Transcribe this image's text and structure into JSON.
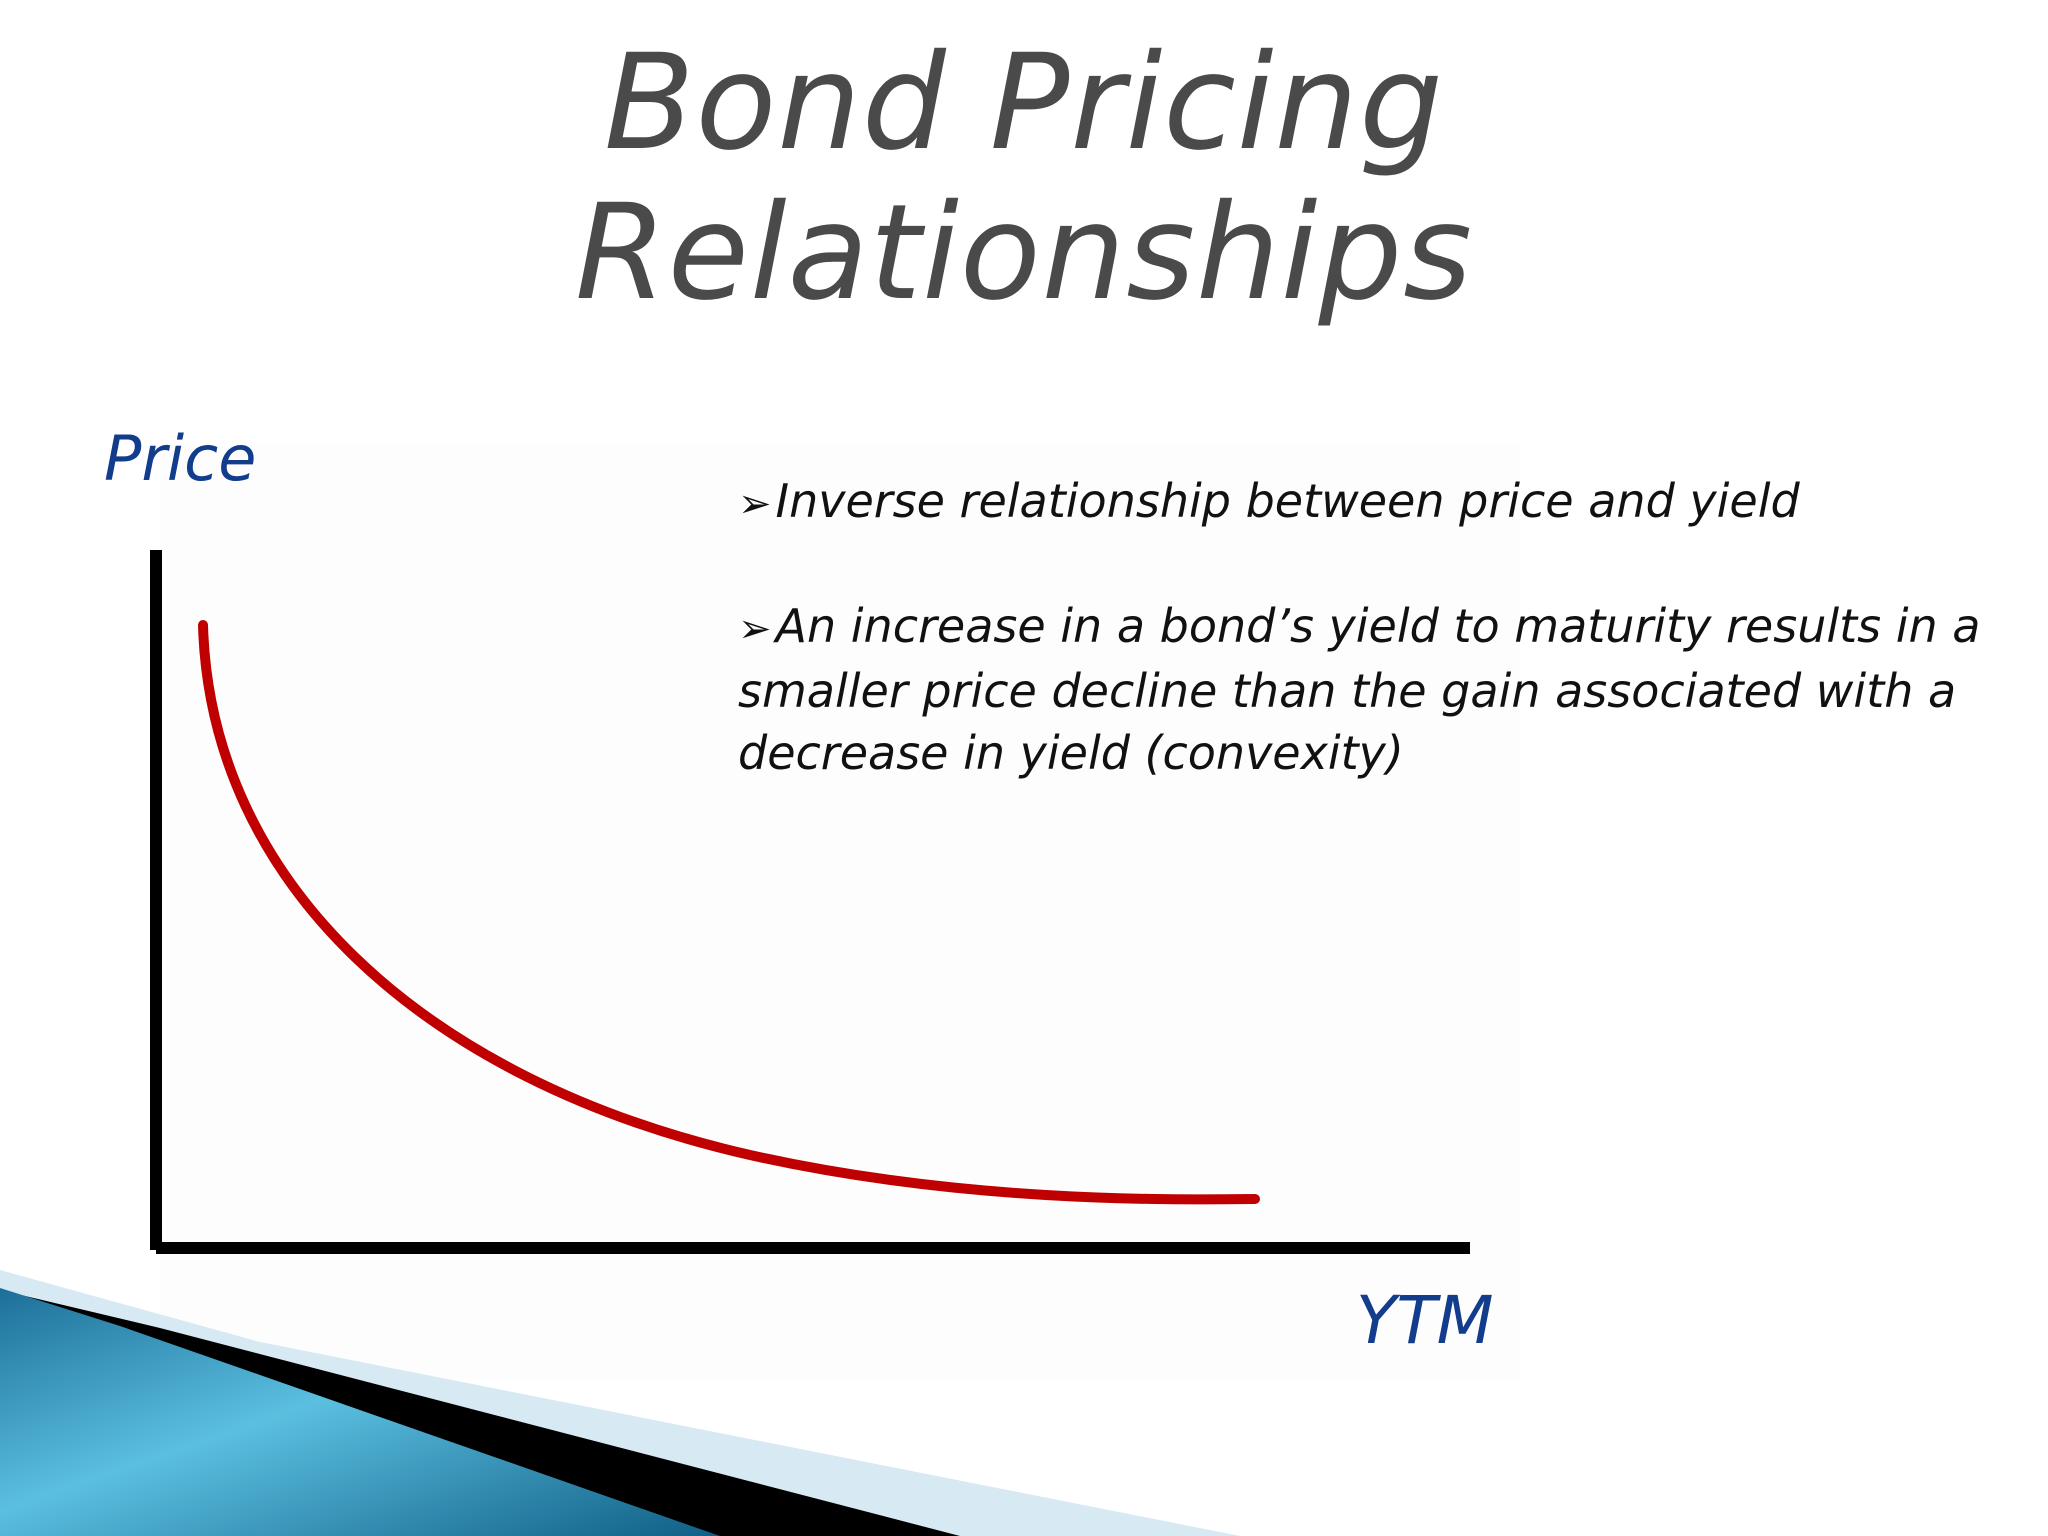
{
  "slide": {
    "title_line1": "Bond Pricing",
    "title_line2": "Relationships",
    "bullet_glyph": "➢",
    "notes": [
      "Inverse relationship between price and yield",
      "An increase in a bond’s yield to maturity results in a smaller price decline than the gain associated with a decrease in yield (convexity)"
    ]
  },
  "chart_data": {
    "type": "line",
    "ylabel": "Price",
    "xlabel": "YTM",
    "grid": false,
    "series": [
      {
        "color": "#c00000",
        "shape": "convex decreasing curve"
      }
    ]
  },
  "colors": {
    "title": "#4a4a4a",
    "axis_label": "#123c8c",
    "curve": "#c00000",
    "axes": "#000000",
    "swoosh_blue": "#2a9ec8",
    "swoosh_light": "#d7e9f3"
  }
}
